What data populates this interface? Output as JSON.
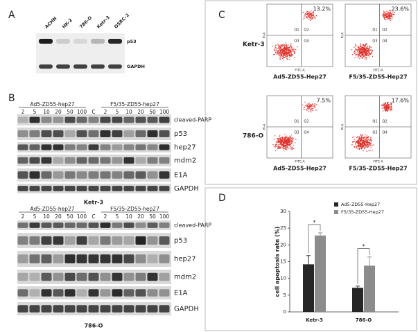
{
  "panels": {
    "A": {
      "label": "A",
      "lanes": [
        "ACHN",
        "HK-2",
        "786-O",
        "Ketr-3",
        "OSRC-2"
      ],
      "bands": [
        "p53",
        "GAPDH"
      ]
    },
    "B": {
      "label": "B",
      "blots": [
        {
          "groups": [
            "Ad5-ZD55-hep27",
            "F5/35-ZD55-hep27"
          ],
          "lanes": [
            "2",
            "5",
            "10",
            "20",
            "50",
            "100",
            "C",
            "2",
            "5",
            "10",
            "20",
            "50",
            "100"
          ],
          "proteins": [
            "cleaved-PARP",
            "p53",
            "hep27",
            "mdm2",
            "E1A",
            "GAPDH"
          ],
          "cell_line": "Ketr-3"
        },
        {
          "groups": [
            "Ad5-ZD55-hep27",
            "F5/35-ZD55-hep27"
          ],
          "lanes": [
            "2",
            "5",
            "10",
            "20",
            "50",
            "100",
            "C",
            "2",
            "5",
            "10",
            "20",
            "50",
            "100"
          ],
          "proteins": [
            "cleaved-PARP",
            "p53",
            "hep27",
            "mdm2",
            "E1A",
            "GAPDH"
          ],
          "cell_line": "786-O"
        }
      ]
    },
    "C": {
      "label": "C",
      "rows": [
        "Ketr-3",
        "786-O"
      ],
      "columns": [
        "Ad5-ZD55-Hep27",
        "F5/35-ZD55-Hep27"
      ],
      "percentages": [
        [
          "13.2%",
          "23.6%"
        ],
        [
          "7.5%",
          "17.6%"
        ]
      ],
      "quadrants": [
        "Q1",
        "Q2",
        "Q3",
        "Q4"
      ],
      "x_axis": "FITC-A",
      "y_axis": "PI-A"
    },
    "D": {
      "label": "D"
    }
  },
  "chart_data": {
    "type": "bar",
    "ylabel": "cell apoptosis rate (%)",
    "categories": [
      "Ketr-3",
      "786-O"
    ],
    "series": [
      {
        "name": "Ad5-ZD55-Hep27",
        "color": "#262626",
        "values": [
          14.2,
          7.2
        ],
        "errors": [
          2.6,
          0.5
        ]
      },
      {
        "name": "F5/35-ZD55-Hep27",
        "color": "#8c8c8c",
        "values": [
          22.8,
          13.8
        ],
        "errors": [
          0.8,
          2.6
        ]
      }
    ],
    "annotations": [
      "*",
      "*"
    ],
    "ylim": [
      0,
      30
    ],
    "yticks": [
      0,
      5,
      10,
      15,
      20,
      25,
      30
    ],
    "legend": "top"
  }
}
